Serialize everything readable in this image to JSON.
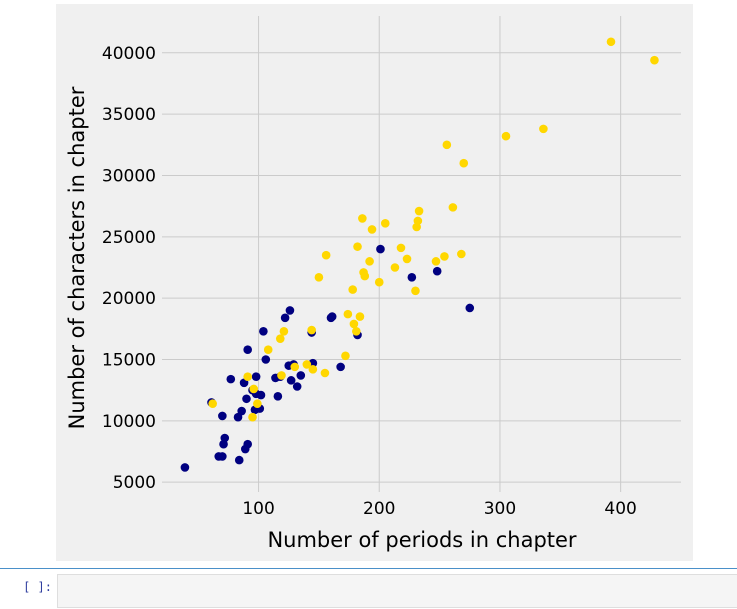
{
  "notebook": {
    "cell_prompt": "[ ]:",
    "cell_input_value": ""
  },
  "chart_data": {
    "type": "scatter",
    "title": "",
    "xlabel": "Number of periods in chapter",
    "ylabel": "Number of characters in chapter",
    "xlim": [
      20,
      450
    ],
    "ylim": [
      4200,
      43000
    ],
    "xticks": [
      100,
      200,
      300,
      400
    ],
    "yticks": [
      5000,
      10000,
      15000,
      20000,
      25000,
      30000,
      35000,
      40000
    ],
    "grid": true,
    "background": "#f0f0f0",
    "gridColor": "#cbcbcb",
    "series": [
      {
        "color": "#000080",
        "points": [
          [
            39,
            6200
          ],
          [
            61,
            11500
          ],
          [
            67,
            7100
          ],
          [
            70,
            7100
          ],
          [
            70,
            10400
          ],
          [
            71,
            8100
          ],
          [
            72,
            8600
          ],
          [
            77,
            13400
          ],
          [
            83,
            10300
          ],
          [
            84,
            6800
          ],
          [
            86,
            10800
          ],
          [
            88,
            13100
          ],
          [
            89,
            7700
          ],
          [
            90,
            11800
          ],
          [
            91,
            8100
          ],
          [
            91,
            15800
          ],
          [
            95,
            12500
          ],
          [
            97,
            10900
          ],
          [
            98,
            13600
          ],
          [
            98,
            12200
          ],
          [
            101,
            11000
          ],
          [
            102,
            12100
          ],
          [
            104,
            17300
          ],
          [
            106,
            15000
          ],
          [
            114,
            13500
          ],
          [
            116,
            12000
          ],
          [
            118,
            13600
          ],
          [
            122,
            18400
          ],
          [
            125,
            14500
          ],
          [
            126,
            19000
          ],
          [
            127,
            13300
          ],
          [
            129,
            14600
          ],
          [
            132,
            12800
          ],
          [
            135,
            13700
          ],
          [
            144,
            17200
          ],
          [
            145,
            14700
          ],
          [
            160,
            18400
          ],
          [
            161,
            18500
          ],
          [
            168,
            14400
          ],
          [
            182,
            17000
          ],
          [
            201,
            24000
          ],
          [
            227,
            21700
          ],
          [
            248,
            22200
          ],
          [
            275,
            19200
          ]
        ]
      },
      {
        "color": "#ffd700",
        "points": [
          [
            62,
            11400
          ],
          [
            91,
            13600
          ],
          [
            95,
            10300
          ],
          [
            96,
            12600
          ],
          [
            99,
            11400
          ],
          [
            108,
            15800
          ],
          [
            118,
            16700
          ],
          [
            119,
            13700
          ],
          [
            121,
            17300
          ],
          [
            130,
            14400
          ],
          [
            140,
            14600
          ],
          [
            144,
            17400
          ],
          [
            145,
            14200
          ],
          [
            150,
            21700
          ],
          [
            155,
            13900
          ],
          [
            156,
            23500
          ],
          [
            172,
            15300
          ],
          [
            174,
            18700
          ],
          [
            178,
            20700
          ],
          [
            179,
            17900
          ],
          [
            181,
            17300
          ],
          [
            182,
            24200
          ],
          [
            184,
            18500
          ],
          [
            186,
            26500
          ],
          [
            187,
            22100
          ],
          [
            188,
            21800
          ],
          [
            192,
            23000
          ],
          [
            194,
            25600
          ],
          [
            200,
            21300
          ],
          [
            205,
            26100
          ],
          [
            213,
            22500
          ],
          [
            218,
            24100
          ],
          [
            223,
            23200
          ],
          [
            230,
            20600
          ],
          [
            231,
            25800
          ],
          [
            232,
            26300
          ],
          [
            233,
            27100
          ],
          [
            247,
            23000
          ],
          [
            254,
            23400
          ],
          [
            256,
            32500
          ],
          [
            261,
            27400
          ],
          [
            268,
            23600
          ],
          [
            270,
            31000
          ],
          [
            305,
            33200
          ],
          [
            336,
            33800
          ],
          [
            392,
            40900
          ],
          [
            428,
            39400
          ]
        ]
      }
    ]
  }
}
